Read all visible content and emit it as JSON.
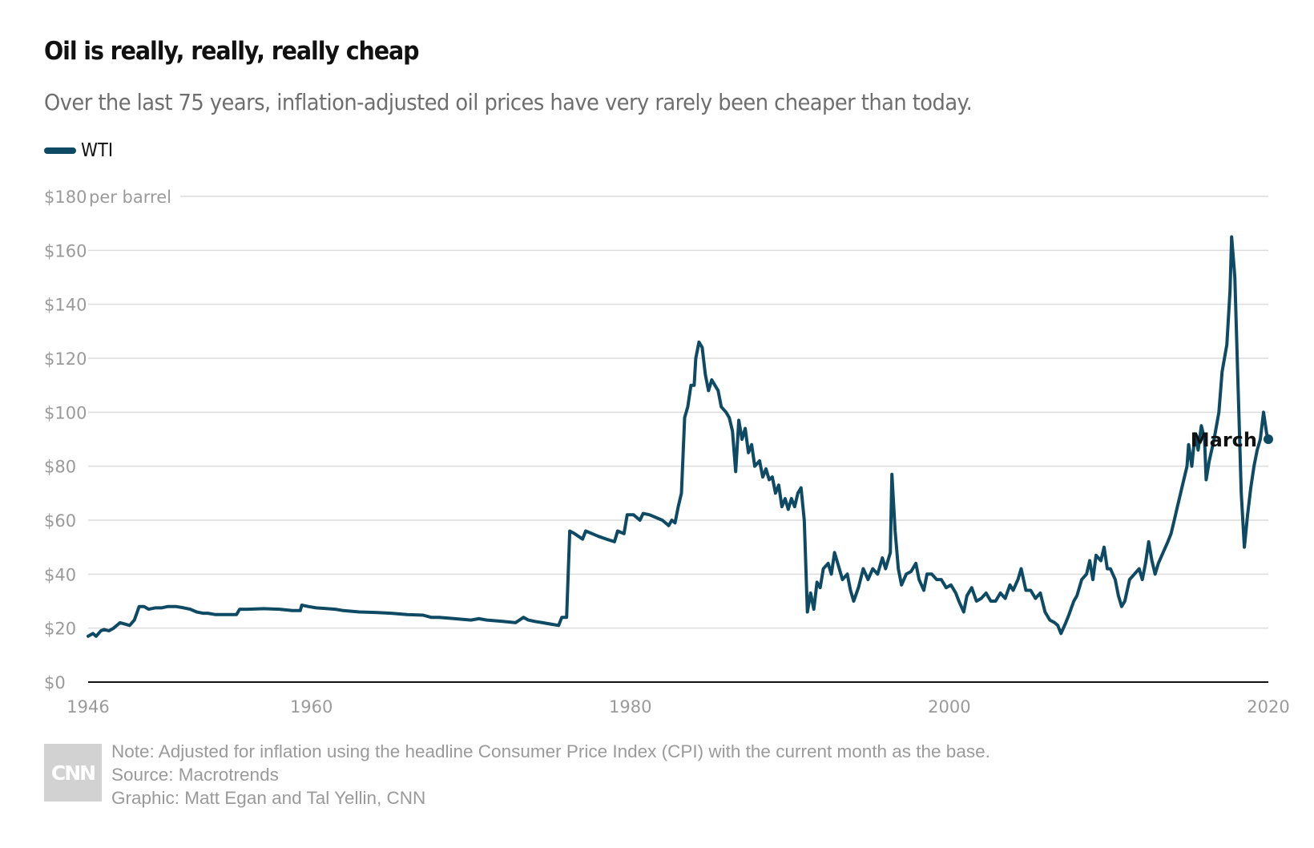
{
  "header": {
    "title": "Oil is really, really, really cheap",
    "subtitle": "Over the last 75 years, inflation-adjusted oil prices have very rarely been cheaper than today."
  },
  "footer": {
    "logo_text": "CNN",
    "note": "Note: Adjusted for inflation using the headline Consumer Price Index (CPI) with the current month as the base.",
    "source": "Source: Macrotrends",
    "credit": "Graphic: Matt Egan and Tal Yellin, CNN"
  },
  "colors": {
    "line": "#0e4a63",
    "grid": "#dcdcdc",
    "axis": "#111111",
    "tick_text": "#9a9a9a"
  },
  "chart_data": {
    "type": "line",
    "unit_label": "per barrel",
    "end_annotation": "March",
    "ylim": [
      0,
      180
    ],
    "xlim": [
      1946,
      2020
    ],
    "grid": true,
    "legend_position": "top-left",
    "y_ticks": [
      {
        "value": 0,
        "label": "$0"
      },
      {
        "value": 20,
        "label": "$20"
      },
      {
        "value": 40,
        "label": "$40"
      },
      {
        "value": 60,
        "label": "$60"
      },
      {
        "value": 80,
        "label": "$80"
      },
      {
        "value": 100,
        "label": "$100"
      },
      {
        "value": 120,
        "label": "$120"
      },
      {
        "value": 140,
        "label": "$140"
      },
      {
        "value": 160,
        "label": "$160"
      },
      {
        "value": 180,
        "label": "$180"
      }
    ],
    "x_ticks": [
      {
        "value": 1946,
        "label": "1946"
      },
      {
        "value": 1960,
        "label": "1960"
      },
      {
        "value": 1980,
        "label": "1980"
      },
      {
        "value": 2000,
        "label": "2000"
      },
      {
        "value": 2020,
        "label": "2020"
      }
    ],
    "series": [
      {
        "name": "WTI",
        "points": [
          [
            1946.0,
            17
          ],
          [
            1946.3,
            18
          ],
          [
            1946.5,
            17
          ],
          [
            1946.8,
            19
          ],
          [
            1947.0,
            19.5
          ],
          [
            1947.3,
            19
          ],
          [
            1947.6,
            20
          ],
          [
            1948.0,
            22
          ],
          [
            1948.3,
            21.5
          ],
          [
            1948.6,
            21
          ],
          [
            1948.9,
            23
          ],
          [
            1949.2,
            28
          ],
          [
            1949.5,
            28
          ],
          [
            1949.8,
            27
          ],
          [
            1950.2,
            27.5
          ],
          [
            1950.6,
            27.5
          ],
          [
            1951.0,
            28
          ],
          [
            1951.5,
            28
          ],
          [
            1952.0,
            27.5
          ],
          [
            1952.4,
            27
          ],
          [
            1952.8,
            26
          ],
          [
            1953.2,
            25.5
          ],
          [
            1953.5,
            25.5
          ],
          [
            1954.0,
            25
          ],
          [
            1954.5,
            25
          ],
          [
            1955.0,
            25
          ],
          [
            1955.3,
            25
          ],
          [
            1955.5,
            27
          ],
          [
            1956.0,
            27
          ],
          [
            1957.0,
            27.2
          ],
          [
            1958.0,
            27
          ],
          [
            1958.8,
            26.5
          ],
          [
            1959.3,
            26.5
          ],
          [
            1959.4,
            28.5
          ],
          [
            1959.8,
            28
          ],
          [
            1960.3,
            27.5
          ],
          [
            1961.0,
            27.2
          ],
          [
            1961.5,
            27
          ],
          [
            1962.0,
            26.5
          ],
          [
            1963.0,
            26
          ],
          [
            1964.0,
            25.8
          ],
          [
            1965.0,
            25.5
          ],
          [
            1966.0,
            25
          ],
          [
            1967.0,
            24.8
          ],
          [
            1967.5,
            24
          ],
          [
            1968.0,
            24
          ],
          [
            1969.0,
            23.5
          ],
          [
            1970.0,
            23
          ],
          [
            1970.5,
            23.5
          ],
          [
            1971.0,
            23
          ],
          [
            1972.0,
            22.5
          ],
          [
            1972.8,
            22
          ],
          [
            1973.3,
            24
          ],
          [
            1973.6,
            23
          ],
          [
            1974.0,
            22.5
          ],
          [
            1974.5,
            22
          ],
          [
            1975.0,
            21.5
          ],
          [
            1975.5,
            21
          ],
          [
            1975.7,
            24
          ],
          [
            1976.0,
            24
          ],
          [
            1976.2,
            56
          ],
          [
            1976.5,
            55
          ],
          [
            1977.0,
            53
          ],
          [
            1977.2,
            56
          ],
          [
            1977.6,
            55
          ],
          [
            1978.0,
            54
          ],
          [
            1978.5,
            53
          ],
          [
            1979.0,
            52
          ],
          [
            1979.2,
            56
          ],
          [
            1979.6,
            55
          ],
          [
            1979.8,
            62
          ],
          [
            1980.2,
            62
          ],
          [
            1980.6,
            60
          ],
          [
            1980.8,
            62.5
          ],
          [
            1981.2,
            62
          ],
          [
            1981.6,
            61
          ],
          [
            1982.0,
            60
          ],
          [
            1982.4,
            58
          ],
          [
            1982.6,
            60
          ],
          [
            1982.8,
            59
          ],
          [
            1983.0,
            65
          ],
          [
            1983.2,
            70
          ],
          [
            1983.4,
            98
          ],
          [
            1983.6,
            102
          ],
          [
            1983.8,
            110
          ],
          [
            1984.0,
            110
          ],
          [
            1984.1,
            120
          ],
          [
            1984.3,
            126
          ],
          [
            1984.5,
            124
          ],
          [
            1984.7,
            114
          ],
          [
            1984.9,
            108
          ],
          [
            1985.1,
            112
          ],
          [
            1985.3,
            110
          ],
          [
            1985.5,
            108
          ],
          [
            1985.7,
            102
          ],
          [
            1986.0,
            100
          ],
          [
            1986.2,
            98
          ],
          [
            1986.4,
            93
          ],
          [
            1986.6,
            78
          ],
          [
            1986.8,
            97
          ],
          [
            1987.0,
            90
          ],
          [
            1987.2,
            94
          ],
          [
            1987.4,
            85
          ],
          [
            1987.6,
            88
          ],
          [
            1987.8,
            80
          ],
          [
            1988.1,
            82
          ],
          [
            1988.3,
            76
          ],
          [
            1988.5,
            79
          ],
          [
            1988.7,
            75
          ],
          [
            1988.9,
            76
          ],
          [
            1989.1,
            70
          ],
          [
            1989.3,
            73
          ],
          [
            1989.5,
            65
          ],
          [
            1989.7,
            68
          ],
          [
            1989.9,
            64
          ],
          [
            1990.1,
            68
          ],
          [
            1990.3,
            65
          ],
          [
            1990.5,
            70
          ],
          [
            1990.7,
            72
          ],
          [
            1990.9,
            60
          ],
          [
            1991.1,
            26
          ],
          [
            1991.3,
            33
          ],
          [
            1991.5,
            27
          ],
          [
            1991.7,
            37
          ],
          [
            1991.9,
            35
          ],
          [
            1992.1,
            42
          ],
          [
            1992.4,
            44
          ],
          [
            1992.6,
            40
          ],
          [
            1992.8,
            48
          ],
          [
            1993.0,
            44
          ],
          [
            1993.3,
            38
          ],
          [
            1993.6,
            40
          ],
          [
            1993.8,
            34
          ],
          [
            1994.0,
            30
          ],
          [
            1994.3,
            35
          ],
          [
            1994.6,
            42
          ],
          [
            1994.9,
            38
          ],
          [
            1995.2,
            42
          ],
          [
            1995.5,
            40
          ],
          [
            1995.8,
            46
          ],
          [
            1996.0,
            42
          ],
          [
            1996.3,
            48
          ],
          [
            1996.4,
            77
          ],
          [
            1996.6,
            56
          ],
          [
            1996.8,
            42
          ],
          [
            1997.0,
            36
          ],
          [
            1997.3,
            40
          ],
          [
            1997.6,
            41
          ],
          [
            1997.9,
            44
          ],
          [
            1998.1,
            38
          ],
          [
            1998.4,
            34
          ],
          [
            1998.6,
            40
          ],
          [
            1998.9,
            40
          ],
          [
            1999.2,
            38
          ],
          [
            1999.5,
            38
          ],
          [
            1999.8,
            35
          ],
          [
            2000.1,
            36
          ],
          [
            2000.4,
            33
          ],
          [
            2000.6,
            30
          ],
          [
            2000.9,
            26
          ],
          [
            2001.1,
            32
          ],
          [
            2001.4,
            35
          ],
          [
            2001.7,
            30
          ],
          [
            2002.0,
            31
          ],
          [
            2002.3,
            33
          ],
          [
            2002.6,
            30
          ],
          [
            2002.9,
            30
          ],
          [
            2003.2,
            33
          ],
          [
            2003.5,
            31
          ],
          [
            2003.8,
            36
          ],
          [
            2004.0,
            34
          ],
          [
            2004.3,
            38
          ],
          [
            2004.5,
            42
          ],
          [
            2004.8,
            34
          ],
          [
            2005.1,
            34
          ],
          [
            2005.4,
            31
          ],
          [
            2005.7,
            33
          ],
          [
            2006.0,
            26
          ],
          [
            2006.3,
            23
          ],
          [
            2006.6,
            22
          ],
          [
            2006.8,
            21
          ],
          [
            2007.0,
            18
          ],
          [
            2007.3,
            22
          ],
          [
            2007.5,
            25
          ],
          [
            2007.8,
            30
          ],
          [
            2008.0,
            32
          ],
          [
            2008.3,
            38
          ],
          [
            2008.6,
            40
          ],
          [
            2008.8,
            45
          ],
          [
            2009.0,
            38
          ],
          [
            2009.2,
            47
          ],
          [
            2009.5,
            45
          ],
          [
            2009.7,
            50
          ],
          [
            2009.9,
            42
          ],
          [
            2010.1,
            42
          ],
          [
            2010.4,
            38
          ],
          [
            2010.6,
            32
          ],
          [
            2010.8,
            28
          ],
          [
            2011.0,
            30
          ],
          [
            2011.3,
            38
          ],
          [
            2011.6,
            40
          ],
          [
            2011.9,
            42
          ],
          [
            2012.1,
            38
          ],
          [
            2012.3,
            44
          ],
          [
            2012.5,
            52
          ],
          [
            2012.7,
            45
          ],
          [
            2012.9,
            40
          ],
          [
            2013.1,
            44
          ],
          [
            2013.4,
            48
          ],
          [
            2013.7,
            52
          ],
          [
            2013.9,
            55
          ],
          [
            2014.1,
            60
          ],
          [
            2014.3,
            65
          ],
          [
            2014.5,
            70
          ],
          [
            2014.7,
            75
          ],
          [
            2014.9,
            80
          ],
          [
            2015.0,
            88
          ],
          [
            2015.2,
            80
          ],
          [
            2015.4,
            92
          ],
          [
            2015.6,
            86
          ],
          [
            2015.8,
            95
          ],
          [
            2016.0,
            90
          ],
          [
            2016.1,
            75
          ],
          [
            2016.3,
            82
          ],
          [
            2016.6,
            90
          ],
          [
            2016.9,
            100
          ],
          [
            2017.1,
            115
          ],
          [
            2017.4,
            125
          ],
          [
            2017.6,
            145
          ],
          [
            2017.7,
            165
          ],
          [
            2017.9,
            150
          ],
          [
            2018.1,
            110
          ],
          [
            2018.3,
            70
          ],
          [
            2018.5,
            50
          ],
          [
            2018.7,
            62
          ],
          [
            2018.9,
            72
          ],
          [
            2019.1,
            80
          ],
          [
            2019.3,
            86
          ],
          [
            2019.5,
            90
          ],
          [
            2019.7,
            100
          ],
          [
            2019.9,
            92
          ],
          [
            2020.0,
            90
          ]
        ]
      }
    ]
  }
}
